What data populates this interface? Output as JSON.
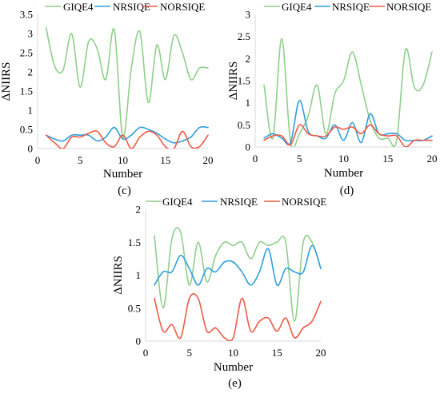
{
  "figure": {
    "series_colors": {
      "GIQE4": "#8fcf8a",
      "NRSIQE": "#2e9fdc",
      "NORSIQE": "#ef5a45"
    }
  },
  "chart_data": [
    {
      "id": "c",
      "type": "line",
      "panel_label": "(c)",
      "xlabel": "Number",
      "ylabel": "ΔNIIRS",
      "xlim": [
        0,
        20
      ],
      "ylim": [
        0,
        3.5
      ],
      "xticks": [
        0,
        5,
        10,
        15,
        20
      ],
      "yticks": [
        0,
        0.5,
        1,
        1.5,
        2,
        2.5,
        3,
        3.5
      ],
      "ytick_labels": [
        "0",
        "0.5",
        "1",
        "1.5",
        "2",
        "2.5",
        "3",
        "3.5"
      ],
      "grid": false,
      "legend": "top",
      "series": [
        {
          "name": "GIQE4",
          "x": [
            1,
            2,
            3,
            4,
            5,
            6,
            7,
            8,
            9,
            10,
            11,
            12,
            13,
            14,
            15,
            16,
            17,
            18,
            19,
            20
          ],
          "values": [
            3.15,
            2.15,
            2.05,
            3.0,
            1.6,
            2.8,
            2.6,
            1.8,
            3.1,
            0.3,
            2.1,
            3.05,
            1.2,
            2.7,
            1.8,
            2.95,
            2.5,
            1.8,
            2.1,
            2.1
          ]
        },
        {
          "name": "NRSIQE",
          "x": [
            1,
            2,
            3,
            4,
            5,
            6,
            7,
            8,
            9,
            10,
            11,
            12,
            13,
            14,
            15,
            16,
            17,
            18,
            19,
            20
          ],
          "values": [
            0.35,
            0.25,
            0.2,
            0.35,
            0.35,
            0.35,
            0.2,
            0.3,
            0.55,
            0.25,
            0.35,
            0.55,
            0.5,
            0.4,
            0.25,
            0.15,
            0.2,
            0.3,
            0.55,
            0.55
          ]
        },
        {
          "name": "NORSIQE",
          "x": [
            1,
            2,
            3,
            4,
            5,
            6,
            7,
            8,
            9,
            10,
            11,
            12,
            13,
            14,
            15,
            16,
            17,
            18,
            19,
            20
          ],
          "values": [
            0.35,
            0.15,
            0.0,
            0.3,
            0.3,
            0.4,
            0.45,
            0.15,
            0.05,
            0.35,
            0.0,
            0.3,
            0.45,
            0.35,
            0.05,
            0.0,
            0.45,
            0.05,
            0.05,
            0.35
          ]
        }
      ]
    },
    {
      "id": "d",
      "type": "line",
      "panel_label": "(d)",
      "xlabel": "Number",
      "ylabel": "ΔNIIRS",
      "xlim": [
        0,
        20
      ],
      "ylim": [
        0,
        3
      ],
      "xticks": [
        0,
        5,
        10,
        15,
        20
      ],
      "yticks": [
        0,
        0.5,
        1,
        1.5,
        2,
        2.5,
        3
      ],
      "ytick_labels": [
        "0",
        "0.5",
        "1",
        "1.5",
        "2",
        "2.5",
        "3"
      ],
      "grid": false,
      "legend": "top",
      "series": [
        {
          "name": "GIQE4",
          "x": [
            1,
            2,
            3,
            4,
            5,
            6,
            7,
            8,
            9,
            10,
            11,
            12,
            13,
            14,
            15,
            16,
            17,
            18,
            19,
            20
          ],
          "values": [
            1.4,
            0.2,
            2.45,
            0.1,
            0.3,
            0.7,
            1.4,
            0.3,
            1.2,
            1.5,
            2.15,
            1.4,
            0.6,
            0.2,
            0.2,
            0.15,
            2.2,
            1.35,
            1.4,
            2.15
          ]
        },
        {
          "name": "NRSIQE",
          "x": [
            1,
            2,
            3,
            4,
            5,
            6,
            7,
            8,
            9,
            10,
            11,
            12,
            13,
            14,
            15,
            16,
            17,
            18,
            19,
            20
          ],
          "values": [
            0.2,
            0.3,
            0.2,
            0.1,
            1.05,
            0.35,
            0.25,
            0.2,
            0.5,
            0.15,
            0.55,
            0.1,
            0.75,
            0.3,
            0.3,
            0.3,
            0.15,
            0.15,
            0.15,
            0.25
          ]
        },
        {
          "name": "NORSIQE",
          "x": [
            1,
            2,
            3,
            4,
            5,
            6,
            7,
            8,
            9,
            10,
            11,
            12,
            13,
            14,
            15,
            16,
            17,
            18,
            19,
            20
          ],
          "values": [
            0.15,
            0.25,
            0.25,
            0.05,
            0.5,
            0.3,
            0.25,
            0.25,
            0.45,
            0.4,
            0.45,
            0.3,
            0.5,
            0.3,
            0.25,
            0.25,
            0.0,
            0.15,
            0.15,
            0.15
          ]
        }
      ]
    },
    {
      "id": "e",
      "type": "line",
      "panel_label": "(e)",
      "xlabel": "Number",
      "ylabel": "ΔNIIRS",
      "xlim": [
        0,
        20
      ],
      "ylim": [
        0,
        2
      ],
      "xticks": [
        0,
        5,
        10,
        15,
        20
      ],
      "yticks": [
        0,
        0.5,
        1,
        1.5,
        2
      ],
      "ytick_labels": [
        "0",
        "0.5",
        "1",
        "1.5",
        "2"
      ],
      "grid": false,
      "legend": "top",
      "series": [
        {
          "name": "GIQE4",
          "x": [
            1,
            2,
            3,
            4,
            5,
            6,
            7,
            8,
            9,
            10,
            11,
            12,
            13,
            14,
            15,
            16,
            17,
            18,
            19,
            20
          ],
          "values": [
            1.6,
            0.5,
            1.55,
            1.65,
            0.85,
            1.5,
            0.9,
            1.3,
            1.5,
            1.45,
            1.5,
            1.25,
            1.5,
            1.45,
            1.5,
            1.5,
            0.3,
            1.5,
            1.5,
            1.1
          ]
        },
        {
          "name": "NRSIQE",
          "x": [
            1,
            2,
            3,
            4,
            5,
            6,
            7,
            8,
            9,
            10,
            11,
            12,
            13,
            14,
            15,
            16,
            17,
            18,
            19,
            20
          ],
          "values": [
            0.85,
            1.05,
            1.05,
            1.3,
            1.1,
            0.85,
            1.1,
            1.05,
            1.2,
            1.2,
            1.05,
            0.85,
            1.05,
            1.4,
            0.85,
            1.1,
            1.05,
            1.05,
            1.45,
            1.1
          ]
        },
        {
          "name": "NORSIQE",
          "x": [
            1,
            2,
            3,
            4,
            5,
            6,
            7,
            8,
            9,
            10,
            11,
            12,
            13,
            14,
            15,
            16,
            17,
            18,
            19,
            20
          ],
          "values": [
            0.65,
            0.15,
            0.25,
            0.05,
            0.65,
            0.65,
            0.15,
            0.2,
            0.05,
            0.05,
            0.65,
            0.15,
            0.3,
            0.35,
            0.15,
            0.35,
            0.05,
            0.2,
            0.3,
            0.6
          ]
        }
      ]
    }
  ]
}
